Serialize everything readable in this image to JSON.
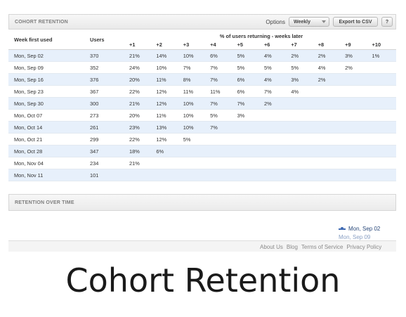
{
  "panel": {
    "title": "COHORT RETENTION",
    "options_label": "Options",
    "period_select": "Weekly",
    "export_button": "Export to CSV",
    "help_button": "?"
  },
  "table": {
    "col_week": "Week first used",
    "col_users": "Users",
    "pct_caption": "% of users returning - weeks later",
    "week_offsets": [
      "+1",
      "+2",
      "+3",
      "+4",
      "+5",
      "+6",
      "+7",
      "+8",
      "+9",
      "+10"
    ],
    "rows": [
      {
        "week": "Mon, Sep 02",
        "users": "370",
        "values": [
          "21%",
          "14%",
          "10%",
          "6%",
          "5%",
          "4%",
          "2%",
          "2%",
          "3%",
          "1%"
        ]
      },
      {
        "week": "Mon, Sep 09",
        "users": "352",
        "values": [
          "24%",
          "10%",
          "7%",
          "7%",
          "5%",
          "5%",
          "5%",
          "4%",
          "2%"
        ]
      },
      {
        "week": "Mon, Sep 16",
        "users": "376",
        "values": [
          "20%",
          "11%",
          "8%",
          "7%",
          "6%",
          "4%",
          "3%",
          "2%"
        ]
      },
      {
        "week": "Mon, Sep 23",
        "users": "367",
        "values": [
          "22%",
          "12%",
          "11%",
          "11%",
          "6%",
          "7%",
          "4%"
        ]
      },
      {
        "week": "Mon, Sep 30",
        "users": "300",
        "values": [
          "21%",
          "12%",
          "10%",
          "7%",
          "7%",
          "2%"
        ]
      },
      {
        "week": "Mon, Oct 07",
        "users": "273",
        "values": [
          "20%",
          "11%",
          "10%",
          "5%",
          "3%"
        ]
      },
      {
        "week": "Mon, Oct 14",
        "users": "261",
        "values": [
          "23%",
          "13%",
          "10%",
          "7%"
        ]
      },
      {
        "week": "Mon, Oct 21",
        "users": "299",
        "values": [
          "22%",
          "12%",
          "5%"
        ]
      },
      {
        "week": "Mon, Oct 28",
        "users": "347",
        "values": [
          "18%",
          "6%"
        ]
      },
      {
        "week": "Mon, Nov 04",
        "users": "234",
        "values": [
          "21%"
        ]
      },
      {
        "week": "Mon, Nov 11",
        "users": "101",
        "values": []
      }
    ]
  },
  "retention_panel": {
    "title": "RETENTION OVER TIME",
    "legend_first": "Mon, Sep 02",
    "legend_second": "Mon, Sep 09"
  },
  "footer": {
    "links": [
      "About Us",
      "Blog",
      "Terms of Service",
      "Privacy Policy"
    ]
  },
  "caption": "Cohort Retention",
  "colors": {
    "row_band": "#e7f0fb",
    "legend_line": "#3f6ab3"
  }
}
